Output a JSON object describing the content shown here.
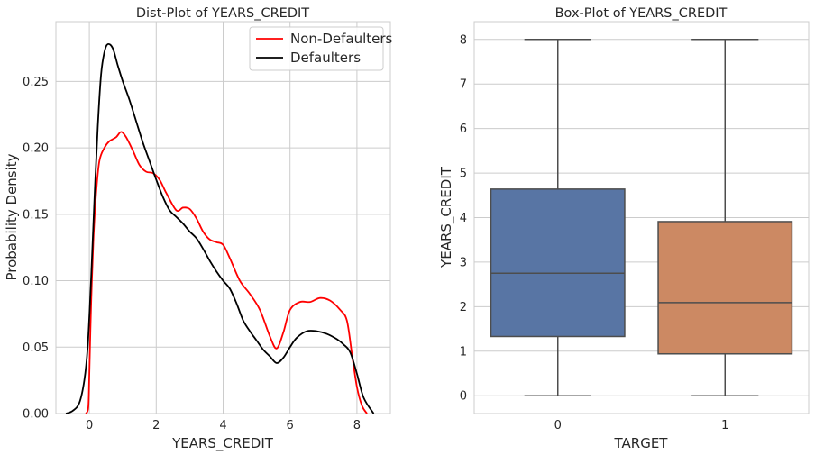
{
  "chart_data": [
    {
      "type": "line",
      "title": "Dist-Plot of YEARS_CREDIT",
      "xlabel": "YEARS_CREDIT",
      "ylabel": "Probability Density",
      "xlim": [
        -1.0,
        9.0
      ],
      "ylim": [
        0.0,
        0.295
      ],
      "xticks": [
        0,
        2,
        4,
        6,
        8
      ],
      "yticks": [
        0.0,
        0.05,
        0.1,
        0.15,
        0.2,
        0.25
      ],
      "ytick_labels": [
        "0.00",
        "0.05",
        "0.10",
        "0.15",
        "0.20",
        "0.25"
      ],
      "grid": true,
      "legend": "top-right",
      "series": [
        {
          "name": "Non-Defaulters",
          "color": "#ff0000",
          "x": [
            -0.1,
            -0.03,
            0.0,
            0.05,
            0.12,
            0.2,
            0.3,
            0.45,
            0.6,
            0.8,
            0.95,
            1.1,
            1.3,
            1.5,
            1.7,
            1.9,
            2.1,
            2.3,
            2.6,
            2.8,
            3.0,
            3.2,
            3.4,
            3.6,
            3.8,
            4.0,
            4.2,
            4.5,
            4.8,
            5.1,
            5.4,
            5.6,
            5.8,
            6.0,
            6.3,
            6.6,
            6.9,
            7.2,
            7.5,
            7.7,
            7.85,
            8.0,
            8.15,
            8.3
          ],
          "y": [
            0.0,
            0.005,
            0.03,
            0.08,
            0.13,
            0.165,
            0.19,
            0.2,
            0.205,
            0.208,
            0.212,
            0.208,
            0.198,
            0.187,
            0.182,
            0.181,
            0.176,
            0.166,
            0.153,
            0.155,
            0.154,
            0.147,
            0.137,
            0.131,
            0.129,
            0.127,
            0.117,
            0.1,
            0.09,
            0.078,
            0.058,
            0.049,
            0.061,
            0.078,
            0.084,
            0.084,
            0.087,
            0.085,
            0.078,
            0.07,
            0.045,
            0.02,
            0.006,
            0.0
          ]
        },
        {
          "name": "Defaulters",
          "color": "#000000",
          "x": [
            -0.7,
            -0.5,
            -0.3,
            -0.15,
            -0.05,
            0.05,
            0.15,
            0.25,
            0.35,
            0.45,
            0.55,
            0.7,
            0.85,
            1.0,
            1.2,
            1.4,
            1.6,
            1.8,
            2.0,
            2.2,
            2.4,
            2.6,
            2.8,
            3.0,
            3.2,
            3.4,
            3.6,
            3.8,
            4.0,
            4.2,
            4.4,
            4.6,
            4.8,
            5.0,
            5.2,
            5.4,
            5.6,
            5.8,
            6.0,
            6.2,
            6.5,
            6.8,
            7.1,
            7.4,
            7.6,
            7.8,
            8.0,
            8.2,
            8.5
          ],
          "y": [
            0.0,
            0.002,
            0.008,
            0.025,
            0.05,
            0.1,
            0.16,
            0.215,
            0.255,
            0.272,
            0.278,
            0.275,
            0.262,
            0.25,
            0.236,
            0.22,
            0.204,
            0.19,
            0.176,
            0.163,
            0.153,
            0.148,
            0.143,
            0.137,
            0.132,
            0.124,
            0.115,
            0.107,
            0.1,
            0.094,
            0.083,
            0.07,
            0.062,
            0.055,
            0.048,
            0.043,
            0.038,
            0.042,
            0.05,
            0.057,
            0.062,
            0.062,
            0.06,
            0.056,
            0.052,
            0.046,
            0.03,
            0.012,
            0.0
          ]
        }
      ]
    },
    {
      "type": "box",
      "title": "Box-Plot of YEARS_CREDIT",
      "xlabel": "TARGET",
      "ylabel": "YEARS_CREDIT",
      "categories": [
        "0",
        "1"
      ],
      "ylim": [
        -0.4,
        8.4
      ],
      "yticks": [
        0,
        1,
        2,
        3,
        4,
        5,
        6,
        7,
        8
      ],
      "grid": true,
      "boxes": [
        {
          "category": "0",
          "color": "#5875a4",
          "min": 0.0,
          "q1": 1.33,
          "median": 2.75,
          "q3": 4.64,
          "max": 8.0
        },
        {
          "category": "1",
          "color": "#cc8963",
          "min": 0.0,
          "q1": 0.94,
          "median": 2.09,
          "q3": 3.91,
          "max": 8.0
        }
      ]
    }
  ]
}
